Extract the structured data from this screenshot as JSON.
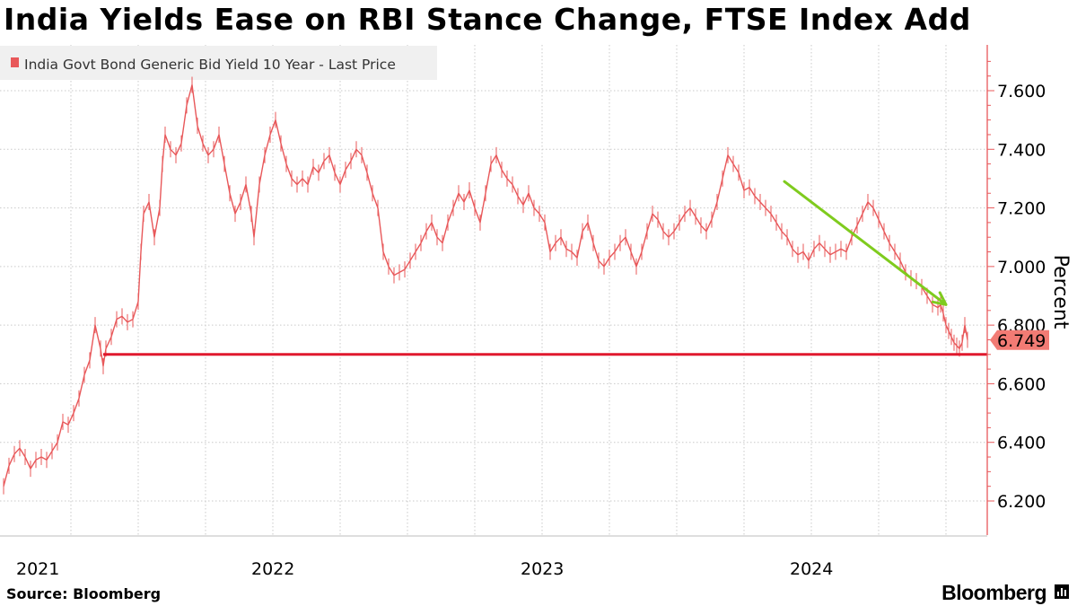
{
  "title": "India Yields Ease on RBI Stance Change, FTSE Index Add",
  "source": "Source: Bloomberg",
  "brand": "Bloomberg",
  "chart_data": {
    "type": "line",
    "title": "India Yields Ease on RBI Stance Change, FTSE Index Add",
    "legend": {
      "label": "India Govt Bond Generic Bid Yield 10 Year - Last Price",
      "placement": "top-left"
    },
    "ylabel": "Percent",
    "xlabel": "",
    "ylim": [
      6.1,
      7.75
    ],
    "y_ticks": [
      "7.600",
      "7.400",
      "7.200",
      "7.000",
      "6.800",
      "6.600",
      "6.400",
      "6.200"
    ],
    "y_tick_values": [
      7.6,
      7.4,
      7.2,
      7.0,
      6.8,
      6.6,
      6.4,
      6.2
    ],
    "x_labels": [
      {
        "label": "2021",
        "t": 2021.0
      },
      {
        "label": "2022",
        "t": 2022.0
      },
      {
        "label": "2023",
        "t": 2023.0
      },
      {
        "label": "2024",
        "t": 2024.0
      }
    ],
    "x_range": [
      2021.0,
      2024.6
    ],
    "x_gridlines": [
      2021.25,
      2021.5,
      2021.75,
      2022.0,
      2022.25,
      2022.5,
      2022.75,
      2023.0,
      2023.25,
      2023.5,
      2023.75,
      2024.0,
      2024.25,
      2024.5
    ],
    "last_value": "6.749",
    "reference_line": {
      "value": 6.7,
      "from_t": 2021.37,
      "color": "#e0182d"
    },
    "trend_arrow": {
      "from": [
        2023.9,
        7.29
      ],
      "to": [
        2024.5,
        6.87
      ],
      "color": "#7fcb1e"
    },
    "series": [
      {
        "name": "India Govt Bond Generic Bid Yield 10 Year - Last Price",
        "color": "#e8585a",
        "points": [
          [
            2021.0,
            6.25
          ],
          [
            2021.02,
            6.32
          ],
          [
            2021.04,
            6.36
          ],
          [
            2021.06,
            6.38
          ],
          [
            2021.08,
            6.35
          ],
          [
            2021.1,
            6.31
          ],
          [
            2021.12,
            6.34
          ],
          [
            2021.14,
            6.35
          ],
          [
            2021.16,
            6.34
          ],
          [
            2021.18,
            6.37
          ],
          [
            2021.2,
            6.4
          ],
          [
            2021.22,
            6.47
          ],
          [
            2021.24,
            6.46
          ],
          [
            2021.26,
            6.5
          ],
          [
            2021.28,
            6.55
          ],
          [
            2021.3,
            6.63
          ],
          [
            2021.32,
            6.68
          ],
          [
            2021.34,
            6.8
          ],
          [
            2021.36,
            6.72
          ],
          [
            2021.37,
            6.66
          ],
          [
            2021.38,
            6.72
          ],
          [
            2021.4,
            6.76
          ],
          [
            2021.42,
            6.82
          ],
          [
            2021.44,
            6.83
          ],
          [
            2021.46,
            6.81
          ],
          [
            2021.48,
            6.82
          ],
          [
            2021.5,
            6.88
          ],
          [
            2021.51,
            7.05
          ],
          [
            2021.52,
            7.18
          ],
          [
            2021.54,
            7.22
          ],
          [
            2021.56,
            7.1
          ],
          [
            2021.58,
            7.2
          ],
          [
            2021.59,
            7.35
          ],
          [
            2021.6,
            7.45
          ],
          [
            2021.62,
            7.4
          ],
          [
            2021.64,
            7.38
          ],
          [
            2021.66,
            7.42
          ],
          [
            2021.68,
            7.55
          ],
          [
            2021.7,
            7.62
          ],
          [
            2021.72,
            7.48
          ],
          [
            2021.74,
            7.42
          ],
          [
            2021.76,
            7.38
          ],
          [
            2021.78,
            7.4
          ],
          [
            2021.8,
            7.45
          ],
          [
            2021.82,
            7.35
          ],
          [
            2021.84,
            7.25
          ],
          [
            2021.86,
            7.18
          ],
          [
            2021.88,
            7.22
          ],
          [
            2021.9,
            7.28
          ],
          [
            2021.92,
            7.18
          ],
          [
            2021.93,
            7.1
          ],
          [
            2021.95,
            7.28
          ],
          [
            2021.97,
            7.38
          ],
          [
            2021.99,
            7.45
          ],
          [
            2022.01,
            7.5
          ],
          [
            2022.03,
            7.42
          ],
          [
            2022.05,
            7.35
          ],
          [
            2022.07,
            7.3
          ],
          [
            2022.09,
            7.28
          ],
          [
            2022.11,
            7.3
          ],
          [
            2022.13,
            7.28
          ],
          [
            2022.15,
            7.34
          ],
          [
            2022.17,
            7.32
          ],
          [
            2022.19,
            7.36
          ],
          [
            2022.21,
            7.38
          ],
          [
            2022.23,
            7.32
          ],
          [
            2022.25,
            7.28
          ],
          [
            2022.27,
            7.33
          ],
          [
            2022.29,
            7.36
          ],
          [
            2022.31,
            7.4
          ],
          [
            2022.33,
            7.38
          ],
          [
            2022.35,
            7.32
          ],
          [
            2022.37,
            7.25
          ],
          [
            2022.39,
            7.2
          ],
          [
            2022.41,
            7.05
          ],
          [
            2022.43,
            7.0
          ],
          [
            2022.45,
            6.97
          ],
          [
            2022.47,
            6.98
          ],
          [
            2022.49,
            6.99
          ],
          [
            2022.51,
            7.02
          ],
          [
            2022.53,
            7.05
          ],
          [
            2022.55,
            7.08
          ],
          [
            2022.57,
            7.12
          ],
          [
            2022.59,
            7.15
          ],
          [
            2022.61,
            7.1
          ],
          [
            2022.63,
            7.08
          ],
          [
            2022.65,
            7.15
          ],
          [
            2022.67,
            7.2
          ],
          [
            2022.69,
            7.25
          ],
          [
            2022.71,
            7.22
          ],
          [
            2022.73,
            7.26
          ],
          [
            2022.75,
            7.2
          ],
          [
            2022.77,
            7.15
          ],
          [
            2022.79,
            7.25
          ],
          [
            2022.81,
            7.35
          ],
          [
            2022.83,
            7.38
          ],
          [
            2022.85,
            7.33
          ],
          [
            2022.87,
            7.3
          ],
          [
            2022.89,
            7.28
          ],
          [
            2022.91,
            7.24
          ],
          [
            2022.93,
            7.21
          ],
          [
            2022.95,
            7.25
          ],
          [
            2022.97,
            7.2
          ],
          [
            2022.99,
            7.18
          ],
          [
            2023.01,
            7.15
          ],
          [
            2023.03,
            7.05
          ],
          [
            2023.05,
            7.08
          ],
          [
            2023.07,
            7.1
          ],
          [
            2023.09,
            7.06
          ],
          [
            2023.11,
            7.05
          ],
          [
            2023.13,
            7.03
          ],
          [
            2023.15,
            7.12
          ],
          [
            2023.17,
            7.15
          ],
          [
            2023.19,
            7.08
          ],
          [
            2023.21,
            7.02
          ],
          [
            2023.23,
            7.0
          ],
          [
            2023.25,
            7.03
          ],
          [
            2023.27,
            7.05
          ],
          [
            2023.29,
            7.08
          ],
          [
            2023.31,
            7.1
          ],
          [
            2023.33,
            7.05
          ],
          [
            2023.35,
            7.0
          ],
          [
            2023.37,
            7.05
          ],
          [
            2023.39,
            7.12
          ],
          [
            2023.41,
            7.18
          ],
          [
            2023.43,
            7.16
          ],
          [
            2023.45,
            7.12
          ],
          [
            2023.47,
            7.1
          ],
          [
            2023.49,
            7.12
          ],
          [
            2023.51,
            7.15
          ],
          [
            2023.53,
            7.18
          ],
          [
            2023.55,
            7.2
          ],
          [
            2023.57,
            7.17
          ],
          [
            2023.59,
            7.14
          ],
          [
            2023.61,
            7.12
          ],
          [
            2023.63,
            7.16
          ],
          [
            2023.65,
            7.22
          ],
          [
            2023.67,
            7.3
          ],
          [
            2023.69,
            7.38
          ],
          [
            2023.71,
            7.35
          ],
          [
            2023.73,
            7.32
          ],
          [
            2023.75,
            7.26
          ],
          [
            2023.77,
            7.27
          ],
          [
            2023.79,
            7.24
          ],
          [
            2023.81,
            7.22
          ],
          [
            2023.83,
            7.2
          ],
          [
            2023.85,
            7.18
          ],
          [
            2023.87,
            7.15
          ],
          [
            2023.89,
            7.12
          ],
          [
            2023.91,
            7.1
          ],
          [
            2023.93,
            7.06
          ],
          [
            2023.95,
            7.04
          ],
          [
            2023.97,
            7.05
          ],
          [
            2023.99,
            7.02
          ],
          [
            2024.01,
            7.06
          ],
          [
            2024.03,
            7.08
          ],
          [
            2024.05,
            7.06
          ],
          [
            2024.07,
            7.04
          ],
          [
            2024.09,
            7.05
          ],
          [
            2024.11,
            7.06
          ],
          [
            2024.13,
            7.05
          ],
          [
            2024.15,
            7.1
          ],
          [
            2024.17,
            7.14
          ],
          [
            2024.19,
            7.18
          ],
          [
            2024.21,
            7.22
          ],
          [
            2024.23,
            7.2
          ],
          [
            2024.25,
            7.16
          ],
          [
            2024.27,
            7.12
          ],
          [
            2024.29,
            7.08
          ],
          [
            2024.31,
            7.05
          ],
          [
            2024.33,
            7.02
          ],
          [
            2024.35,
            6.98
          ],
          [
            2024.37,
            6.96
          ],
          [
            2024.39,
            6.95
          ],
          [
            2024.41,
            6.93
          ],
          [
            2024.43,
            6.9
          ],
          [
            2024.45,
            6.87
          ],
          [
            2024.47,
            6.86
          ],
          [
            2024.48,
            6.87
          ],
          [
            2024.49,
            6.84
          ],
          [
            2024.5,
            6.8
          ],
          [
            2024.51,
            6.78
          ],
          [
            2024.52,
            6.76
          ],
          [
            2024.53,
            6.74
          ],
          [
            2024.54,
            6.73
          ],
          [
            2024.55,
            6.72
          ],
          [
            2024.56,
            6.74
          ],
          [
            2024.57,
            6.8
          ],
          [
            2024.58,
            6.75
          ]
        ]
      }
    ]
  }
}
